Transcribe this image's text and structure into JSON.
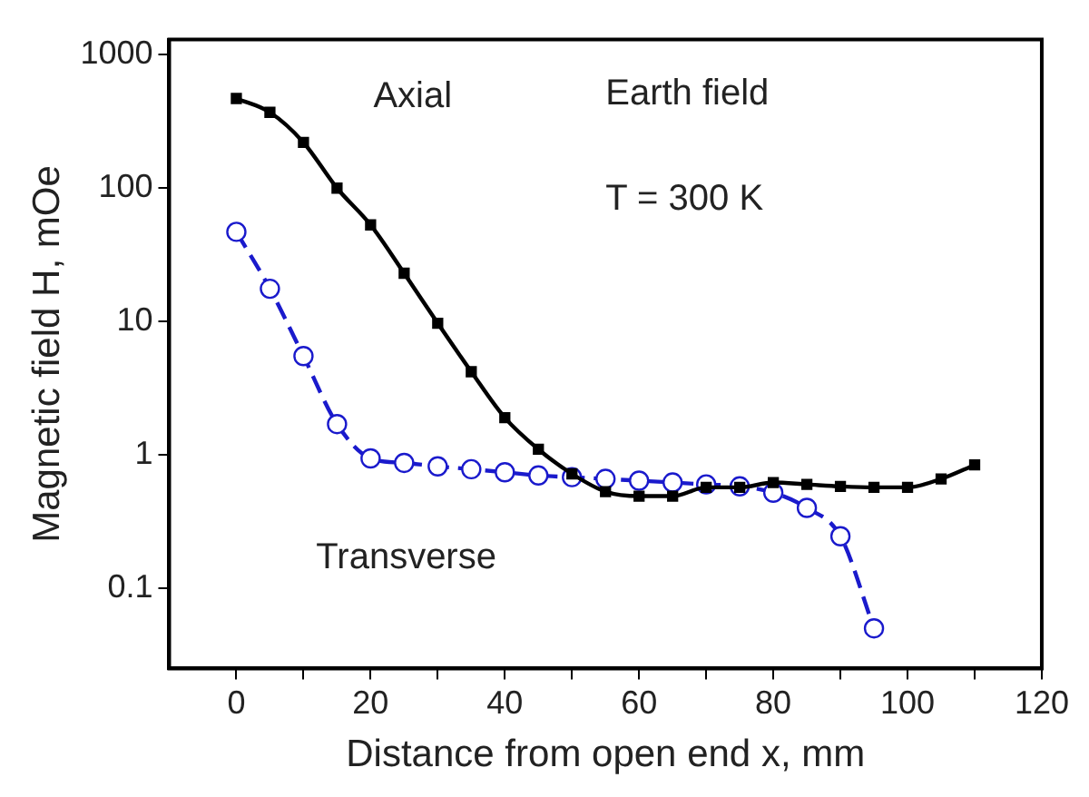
{
  "chart_data": {
    "type": "line",
    "xlabel": "Distance from open end x, mm",
    "ylabel": "Magnetic field H, mOe",
    "annotations": [
      "Earth field",
      "T = 300 K"
    ],
    "x": [
      0,
      5,
      10,
      15,
      20,
      25,
      30,
      35,
      40,
      45,
      50,
      55,
      60,
      65,
      70,
      75,
      80,
      85,
      90,
      95,
      100,
      105,
      110
    ],
    "series": [
      {
        "name": "Axial",
        "color": "#000000",
        "marker": "square",
        "line_style": "solid",
        "values": [
          470,
          370,
          220,
          100,
          53,
          23,
          9.7,
          4.2,
          1.9,
          1.1,
          0.72,
          0.53,
          0.49,
          0.49,
          0.57,
          0.57,
          0.62,
          0.6,
          0.58,
          0.57,
          0.57,
          0.66,
          0.84
        ]
      },
      {
        "name": "Transverse",
        "color": "#1a1acc",
        "marker": "circle",
        "line_style": "dashed",
        "x": [
          0,
          5,
          10,
          15,
          20,
          25,
          30,
          35,
          40,
          45,
          50,
          55,
          60,
          65,
          70,
          75,
          80,
          85,
          90,
          95
        ],
        "values": [
          47,
          17.6,
          5.5,
          1.7,
          0.94,
          0.87,
          0.82,
          0.78,
          0.74,
          0.7,
          0.68,
          0.66,
          0.64,
          0.62,
          0.6,
          0.58,
          0.52,
          0.4,
          0.245,
          0.05
        ]
      }
    ],
    "log": "y",
    "xlim": [
      -10,
      120
    ],
    "xticks": [
      0,
      {
        "value": 10,
        "label": null
      },
      20,
      {
        "value": 30,
        "label": null
      },
      40,
      {
        "value": 50,
        "label": null
      },
      60,
      {
        "value": 70,
        "label": null
      },
      80,
      {
        "value": 90,
        "label": null
      },
      100,
      {
        "value": 110,
        "label": null
      },
      120
    ],
    "ylim": [
      0.025,
      1300
    ],
    "yticks": [
      0.1,
      1,
      10,
      100,
      1000
    ],
    "grid": false,
    "legend": false
  }
}
